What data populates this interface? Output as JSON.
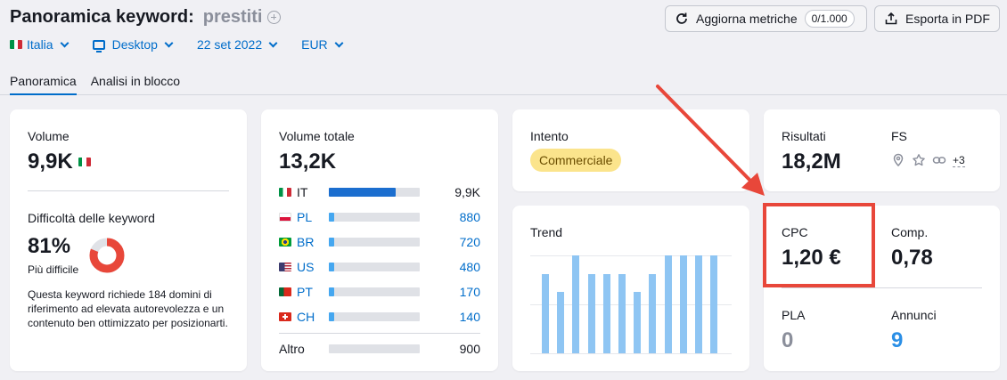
{
  "header": {
    "title": "Panoramica keyword:",
    "keyword": "prestiti",
    "filters": {
      "country": "Italia",
      "device": "Desktop",
      "date": "22 set 2022",
      "currency": "EUR"
    },
    "tabs": [
      {
        "label": "Panoramica",
        "active": true
      },
      {
        "label": "Analisi in blocco",
        "active": false
      }
    ],
    "refresh_label": "Aggiorna metriche",
    "refresh_counter": "0/1.000",
    "export_label": "Esporta in PDF"
  },
  "volume_card": {
    "label": "Volume",
    "value": "9,9K",
    "kd_label": "Difficoltà delle keyword",
    "kd_value": "81%",
    "kd_fraction": 0.81,
    "kd_level": "Più difficile",
    "kd_description": "Questa keyword richiede 184 domini di riferimento ad elevata autorevolezza e un contenuto ben ottimizzato per posizionarti."
  },
  "global_card": {
    "label": "Volume totale",
    "value": "13,2K",
    "countries": [
      {
        "code": "IT",
        "value": "9,9K",
        "fraction": 0.74,
        "flag": "it"
      },
      {
        "code": "PL",
        "value": "880",
        "fraction": 0.06,
        "flag": "pl"
      },
      {
        "code": "BR",
        "value": "720",
        "fraction": 0.05,
        "flag": "br"
      },
      {
        "code": "US",
        "value": "480",
        "fraction": 0.04,
        "flag": "us"
      },
      {
        "code": "PT",
        "value": "170",
        "fraction": 0.03,
        "flag": "pt"
      },
      {
        "code": "CH",
        "value": "140",
        "fraction": 0.03,
        "flag": "ch"
      }
    ],
    "other_label": "Altro",
    "other_value": "900",
    "other_fraction": 0.05
  },
  "intent_card": {
    "label": "Intento",
    "value": "Commerciale"
  },
  "trend_card": {
    "label": "Trend",
    "values": [
      0.81,
      0.63,
      1.0,
      0.81,
      0.81,
      0.81,
      0.63,
      0.81,
      1.0,
      1.0,
      1.0,
      1.0
    ]
  },
  "serp_card": {
    "results_label": "Risultati",
    "results_value": "18,2M",
    "fs_label": "FS",
    "fs_more": "+3"
  },
  "cpc_card": {
    "cpc_label": "CPC",
    "cpc_value": "1,20 €",
    "comp_label": "Comp.",
    "comp_value": "0,78",
    "pla_label": "PLA",
    "pla_value": "0",
    "ads_label": "Annunci",
    "ads_value": "9"
  },
  "colors": {
    "accent": "#006dca",
    "bar_main": "#1b6ecf",
    "bar_other": "#45a7f0",
    "kd_red": "#e8473a",
    "trend": "#8ec5f3",
    "annotation": "#e8473a"
  }
}
